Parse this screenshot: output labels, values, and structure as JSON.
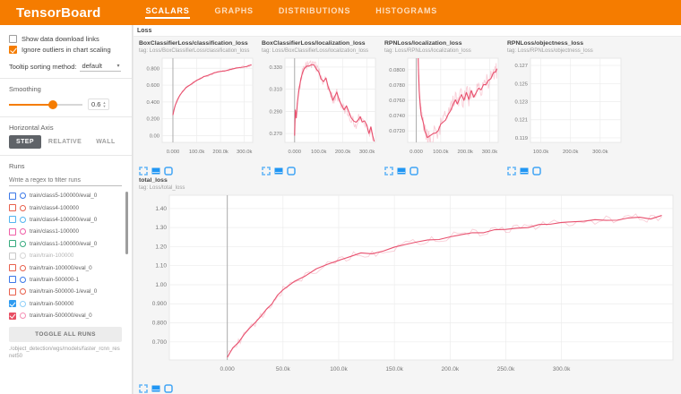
{
  "header": {
    "logo": "TensorBoard",
    "tabs": [
      {
        "label": "SCALARS",
        "active": true
      },
      {
        "label": "GRAPHS",
        "active": false
      },
      {
        "label": "DISTRIBUTIONS",
        "active": false
      },
      {
        "label": "HISTOGRAMS",
        "active": false
      }
    ],
    "accent_color": "#f57c00"
  },
  "sidebar": {
    "checkboxes": [
      {
        "label": "Show data download links",
        "checked": false
      },
      {
        "label": "Ignore outliers in chart scaling",
        "checked": true
      }
    ],
    "tooltip_sort": {
      "label": "Tooltip sorting method:",
      "value": "default"
    },
    "smoothing": {
      "label": "Smoothing",
      "value": "0.6",
      "percent": 60
    },
    "horizontal_axis": {
      "label": "Horizontal Axis",
      "options": [
        {
          "label": "STEP",
          "active": true
        },
        {
          "label": "RELATIVE",
          "active": false
        },
        {
          "label": "WALL",
          "active": false
        }
      ]
    },
    "runs": {
      "label": "Runs",
      "filter_placeholder": "Write a regex to filter runs",
      "items": [
        {
          "name": "train/class5-100000/eval_0",
          "color": "#3b78e7",
          "circle": "#3b78e7",
          "checked": false
        },
        {
          "name": "train/class4-100000",
          "color": "#e8604c",
          "circle": "#e8604c",
          "checked": false
        },
        {
          "name": "train/class4-100000/eval_0",
          "color": "#53b4ef",
          "circle": "#53b4ef",
          "checked": false
        },
        {
          "name": "train/class1-100000",
          "color": "#ef5fa7",
          "circle": "#ef5fa7",
          "checked": false
        },
        {
          "name": "train/class1-100000/eval_0",
          "color": "#36ab7e",
          "circle": "#36ab7e",
          "checked": false
        },
        {
          "name": "train/train-100000",
          "color": "#c9c9c9",
          "circle": "#d6d6d6",
          "checked": false
        },
        {
          "name": "train/train-100000/eval_0",
          "color": "#e8604c",
          "circle": "#e8604c",
          "checked": false
        },
        {
          "name": "train/train-500000-1",
          "color": "#3b78e7",
          "circle": "#3b78e7",
          "checked": false
        },
        {
          "name": "train/train-500000-1/eval_0",
          "color": "#e8604c",
          "circle": "#e8604c",
          "checked": false
        },
        {
          "name": "train/train-500000",
          "color": "#2f9bf0",
          "circle": "#8fd0f8",
          "checked": true
        },
        {
          "name": "train/train-500000/eval_0",
          "color": "#e84f64",
          "circle": "#f58fb4",
          "checked": true
        }
      ],
      "toggle_all": "TOGGLE ALL RUNS",
      "path": "./object_detection/wgs/models/faster_rcnn_resnet50"
    }
  },
  "main": {
    "category": "Loss"
  },
  "card_icons": [
    "fullscreen",
    "fit-data",
    "pin"
  ],
  "chart_data": [
    {
      "type": "line",
      "id": "box-classifier-classification-loss",
      "title": "BoxClassifierLoss/classification_loss",
      "tag": "tag: Loss/BoxClassifierLoss/classification_loss",
      "big": false,
      "zero_line": true,
      "noise": 0.012,
      "xlim": [
        -45,
        335
      ],
      "ylim": [
        -0.08,
        0.92
      ],
      "x_ticks": [
        {
          "v": 0,
          "label": "0.000"
        },
        {
          "v": 100,
          "label": "100.0k"
        },
        {
          "v": 200,
          "label": "200.0k"
        },
        {
          "v": 300,
          "label": "300.0k"
        }
      ],
      "y_ticks": [
        {
          "v": 0.8,
          "label": "0.800"
        },
        {
          "v": 0.6,
          "label": "0.600"
        },
        {
          "v": 0.4,
          "label": "0.400"
        },
        {
          "v": 0.2,
          "label": "0.200"
        },
        {
          "v": 0.0,
          "label": "0.00"
        }
      ],
      "series": [
        {
          "name": "train/train-500000/eval_0",
          "color": "#e8506e",
          "x": [
            0,
            5,
            10,
            20,
            30,
            40,
            55,
            70,
            85,
            100,
            115,
            130,
            145,
            160,
            175,
            190,
            205,
            220,
            235,
            250,
            265,
            280,
            295,
            310,
            320,
            330
          ],
          "y": [
            0.25,
            0.31,
            0.36,
            0.43,
            0.48,
            0.52,
            0.57,
            0.6,
            0.63,
            0.66,
            0.68,
            0.7,
            0.715,
            0.73,
            0.745,
            0.755,
            0.765,
            0.77,
            0.78,
            0.79,
            0.8,
            0.81,
            0.815,
            0.825,
            0.83,
            0.84
          ]
        }
      ]
    },
    {
      "type": "line",
      "id": "box-classifier-localization-loss",
      "title": "BoxClassifierLoss/localization_loss",
      "tag": "tag: Loss/BoxClassifierLoss/localization_loss",
      "big": false,
      "zero_line": true,
      "noise": 0.004,
      "xlim": [
        -40,
        335
      ],
      "ylim": [
        0.262,
        0.338
      ],
      "x_ticks": [
        {
          "v": 0,
          "label": "0.000"
        },
        {
          "v": 100,
          "label": "100.0k"
        },
        {
          "v": 200,
          "label": "200.0k"
        },
        {
          "v": 300,
          "label": "300.0k"
        }
      ],
      "y_ticks": [
        {
          "v": 0.33,
          "label": "0.330"
        },
        {
          "v": 0.31,
          "label": "0.310"
        },
        {
          "v": 0.29,
          "label": "0.290"
        },
        {
          "v": 0.27,
          "label": "0.270"
        }
      ],
      "series": [
        {
          "name": "train/train-500000/eval_0",
          "color": "#e8506e",
          "x": [
            0,
            3,
            7,
            12,
            18,
            25,
            32,
            40,
            50,
            60,
            70,
            80,
            90,
            100,
            110,
            120,
            130,
            140,
            150,
            158,
            166,
            175,
            185,
            195,
            205,
            215,
            225,
            235,
            245,
            255,
            265,
            272,
            280,
            290,
            300,
            308,
            316,
            324,
            330
          ],
          "y": [
            0.268,
            0.292,
            0.285,
            0.3,
            0.31,
            0.318,
            0.325,
            0.329,
            0.331,
            0.33,
            0.332,
            0.331,
            0.329,
            0.325,
            0.32,
            0.317,
            0.319,
            0.311,
            0.306,
            0.3,
            0.303,
            0.306,
            0.299,
            0.296,
            0.291,
            0.294,
            0.288,
            0.284,
            0.281,
            0.279,
            0.284,
            0.286,
            0.279,
            0.282,
            0.276,
            0.27,
            0.275,
            0.268,
            0.264
          ]
        }
      ]
    },
    {
      "type": "line",
      "id": "rpn-localization-loss",
      "title": "RPNLoss/localization_loss",
      "tag": "tag: Loss/RPNLoss/localization_loss",
      "big": false,
      "zero_line": true,
      "noise": 0.001,
      "xlim": [
        -35,
        335
      ],
      "ylim": [
        0.0705,
        0.0815
      ],
      "x_ticks": [
        {
          "v": 0,
          "label": "0.000"
        },
        {
          "v": 100,
          "label": "100.0k"
        },
        {
          "v": 200,
          "label": "200.0k"
        },
        {
          "v": 300,
          "label": "300.0k"
        }
      ],
      "y_ticks": [
        {
          "v": 0.08,
          "label": "0.0800"
        },
        {
          "v": 0.078,
          "label": "0.0780"
        },
        {
          "v": 0.076,
          "label": "0.0760"
        },
        {
          "v": 0.074,
          "label": "0.0740"
        },
        {
          "v": 0.072,
          "label": "0.0720"
        }
      ],
      "series": [
        {
          "name": "train/train-500000/eval_0",
          "color": "#e8506e",
          "x": [
            0,
            3,
            6,
            9,
            12,
            16,
            20,
            25,
            30,
            35,
            40,
            45,
            50,
            55,
            60,
            70,
            80,
            90,
            100,
            110,
            120,
            130,
            140,
            150,
            160,
            168,
            176,
            185,
            195,
            205,
            215,
            225,
            235,
            245,
            255,
            265,
            275,
            285,
            295,
            305,
            315,
            325,
            330
          ],
          "y": [
            0.095,
            0.089,
            0.084,
            0.08,
            0.0775,
            0.0757,
            0.0744,
            0.0733,
            0.0726,
            0.072,
            0.0716,
            0.0713,
            0.0711,
            0.0713,
            0.0712,
            0.0716,
            0.0719,
            0.0723,
            0.0727,
            0.0731,
            0.0736,
            0.0741,
            0.0747,
            0.0754,
            0.0763,
            0.0752,
            0.076,
            0.0767,
            0.0759,
            0.0771,
            0.0764,
            0.077,
            0.0767,
            0.0773,
            0.0777,
            0.0773,
            0.0779,
            0.0782,
            0.0785,
            0.0789,
            0.0793,
            0.0798,
            0.0801
          ]
        }
      ]
    },
    {
      "type": "line",
      "id": "rpn-objectness-loss",
      "title": "RPNLoss/objectness_loss",
      "tag": "tag: Loss/RPNLoss/objectness_loss",
      "big": false,
      "zero_line": false,
      "noise": 0,
      "xlim": [
        65,
        370
      ],
      "ylim": [
        0.1185,
        0.1278
      ],
      "x_ticks": [
        {
          "v": 100,
          "label": "100.0k"
        },
        {
          "v": 200,
          "label": "200.0k"
        },
        {
          "v": 300,
          "label": "300.0k"
        }
      ],
      "y_ticks": [
        {
          "v": 0.127,
          "label": "0.127"
        },
        {
          "v": 0.125,
          "label": "0.125"
        },
        {
          "v": 0.123,
          "label": "0.123"
        },
        {
          "v": 0.121,
          "label": "0.121"
        },
        {
          "v": 0.119,
          "label": "0.119"
        }
      ],
      "series": []
    },
    {
      "type": "line",
      "id": "total-loss",
      "title": "total_loss",
      "tag": "tag: Loss/total_loss",
      "big": true,
      "zero_line": true,
      "noise": 0.018,
      "xlim": [
        -52,
        400
      ],
      "ylim": [
        0.605,
        1.47
      ],
      "x_ticks": [
        {
          "v": 0,
          "label": "0.000"
        },
        {
          "v": 50,
          "label": "50.0k"
        },
        {
          "v": 100,
          "label": "100.0k"
        },
        {
          "v": 150,
          "label": "150.0k"
        },
        {
          "v": 200,
          "label": "200.0k"
        },
        {
          "v": 250,
          "label": "250.0k"
        },
        {
          "v": 300,
          "label": "300.0k"
        }
      ],
      "y_ticks": [
        {
          "v": 1.4,
          "label": "1.40"
        },
        {
          "v": 1.3,
          "label": "1.30"
        },
        {
          "v": 1.2,
          "label": "1.20"
        },
        {
          "v": 1.1,
          "label": "1.10"
        },
        {
          "v": 1.0,
          "label": "1.00"
        },
        {
          "v": 0.9,
          "label": "0.900"
        },
        {
          "v": 0.8,
          "label": "0.800"
        },
        {
          "v": 0.7,
          "label": "0.700"
        }
      ],
      "series": [
        {
          "name": "train/train-500000/eval_0",
          "color": "#e8506e",
          "x": [
            0,
            5,
            10,
            15,
            20,
            25,
            30,
            35,
            40,
            45,
            50,
            60,
            70,
            80,
            90,
            100,
            110,
            120,
            130,
            140,
            150,
            160,
            170,
            180,
            190,
            200,
            210,
            220,
            230,
            240,
            250,
            260,
            270,
            280,
            290,
            300,
            310,
            320,
            330,
            340,
            350,
            360,
            370,
            380,
            390
          ],
          "y": [
            0.62,
            0.665,
            0.7,
            0.735,
            0.77,
            0.8,
            0.835,
            0.87,
            0.905,
            0.94,
            0.975,
            1.02,
            1.05,
            1.08,
            1.105,
            1.13,
            1.15,
            1.165,
            1.16,
            1.18,
            1.195,
            1.215,
            1.225,
            1.235,
            1.24,
            1.255,
            1.265,
            1.27,
            1.278,
            1.285,
            1.295,
            1.3,
            1.305,
            1.313,
            1.318,
            1.324,
            1.329,
            1.334,
            1.338,
            1.343,
            1.338,
            1.348,
            1.352,
            1.348,
            1.358
          ]
        }
      ]
    }
  ]
}
